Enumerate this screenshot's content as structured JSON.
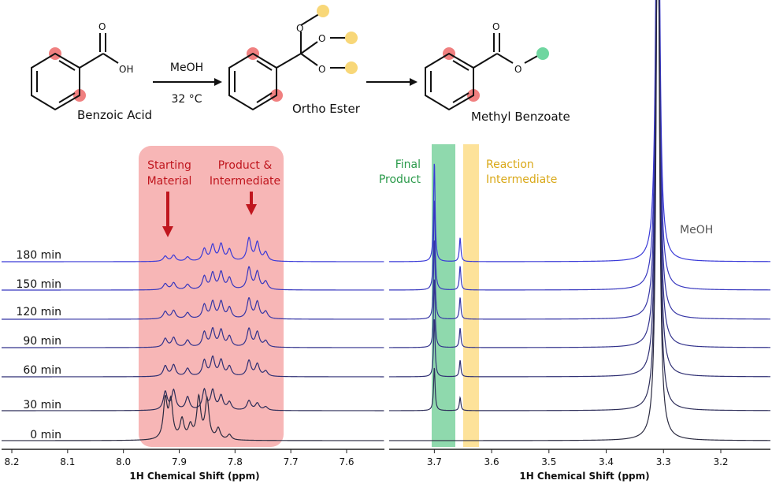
{
  "scheme": {
    "reactant": "Benzoic Acid",
    "intermediate": "Ortho Ester",
    "product": "Methyl Benzoate",
    "reagent": "MeOH",
    "temperature": "32 °C",
    "oh_label": "OH",
    "o_label": "O"
  },
  "colors": {
    "trace_top": "#3a3ad8",
    "trace_bottom": "#2a2a40",
    "red_band": "#f7b6b6",
    "red_text": "#c0161e",
    "green_band": "#8fd9ad",
    "green_text": "#2a9a4a",
    "yellow_band": "#fde29a",
    "yellow_text": "#d9a818",
    "red_dot": "#f08080",
    "yellow_dot": "#f8d778",
    "green_dot": "#6fd6a0"
  },
  "annotations": {
    "starting_material": [
      "Starting",
      "Material"
    ],
    "product_intermediate": [
      "Product &",
      "Intermediate"
    ],
    "final_product": [
      "Final",
      "Product"
    ],
    "reaction_intermediate": [
      "Reaction",
      "Intermediate"
    ],
    "meoh": "MeOH"
  },
  "chart_data": {
    "type": "line",
    "description": "Stacked 1H NMR spectra vs reaction time (split x-axis)",
    "series": [
      {
        "name": "180 min",
        "aromatic_peaks": [
          {
            "ppm": 7.925,
            "h": 0.12
          },
          {
            "ppm": 7.91,
            "h": 0.14
          },
          {
            "ppm": 7.885,
            "h": 0.1
          },
          {
            "ppm": 7.855,
            "h": 0.28
          },
          {
            "ppm": 7.84,
            "h": 0.36
          },
          {
            "ppm": 7.825,
            "h": 0.38
          },
          {
            "ppm": 7.81,
            "h": 0.26
          },
          {
            "ppm": 7.775,
            "h": 0.52
          },
          {
            "ppm": 7.76,
            "h": 0.42
          },
          {
            "ppm": 7.745,
            "h": 0.2
          }
        ],
        "ester_ppm": 3.7,
        "ester_h": 2.3,
        "intermediate_ppm": 3.655,
        "intermediate_h": 0.55
      },
      {
        "name": "150 min",
        "aromatic_peaks": [
          {
            "ppm": 7.925,
            "h": 0.14
          },
          {
            "ppm": 7.91,
            "h": 0.16
          },
          {
            "ppm": 7.885,
            "h": 0.12
          },
          {
            "ppm": 7.855,
            "h": 0.3
          },
          {
            "ppm": 7.84,
            "h": 0.37
          },
          {
            "ppm": 7.825,
            "h": 0.39
          },
          {
            "ppm": 7.81,
            "h": 0.26
          },
          {
            "ppm": 7.775,
            "h": 0.5
          },
          {
            "ppm": 7.76,
            "h": 0.4
          },
          {
            "ppm": 7.745,
            "h": 0.18
          }
        ],
        "ester_ppm": 3.7,
        "ester_h": 2.1,
        "intermediate_ppm": 3.655,
        "intermediate_h": 0.55
      },
      {
        "name": "120 min",
        "aromatic_peaks": [
          {
            "ppm": 7.925,
            "h": 0.17
          },
          {
            "ppm": 7.91,
            "h": 0.19
          },
          {
            "ppm": 7.885,
            "h": 0.14
          },
          {
            "ppm": 7.855,
            "h": 0.32
          },
          {
            "ppm": 7.84,
            "h": 0.38
          },
          {
            "ppm": 7.825,
            "h": 0.38
          },
          {
            "ppm": 7.81,
            "h": 0.25
          },
          {
            "ppm": 7.775,
            "h": 0.46
          },
          {
            "ppm": 7.76,
            "h": 0.38
          },
          {
            "ppm": 7.745,
            "h": 0.16
          }
        ],
        "ester_ppm": 3.7,
        "ester_h": 1.85,
        "intermediate_ppm": 3.655,
        "intermediate_h": 0.5
      },
      {
        "name": "90 min",
        "aromatic_peaks": [
          {
            "ppm": 7.925,
            "h": 0.2
          },
          {
            "ppm": 7.91,
            "h": 0.22
          },
          {
            "ppm": 7.885,
            "h": 0.16
          },
          {
            "ppm": 7.855,
            "h": 0.34
          },
          {
            "ppm": 7.84,
            "h": 0.4
          },
          {
            "ppm": 7.825,
            "h": 0.38
          },
          {
            "ppm": 7.81,
            "h": 0.24
          },
          {
            "ppm": 7.775,
            "h": 0.42
          },
          {
            "ppm": 7.76,
            "h": 0.34
          },
          {
            "ppm": 7.745,
            "h": 0.14
          }
        ],
        "ester_ppm": 3.7,
        "ester_h": 1.6,
        "intermediate_ppm": 3.655,
        "intermediate_h": 0.45
      },
      {
        "name": "60 min",
        "aromatic_peaks": [
          {
            "ppm": 7.925,
            "h": 0.24
          },
          {
            "ppm": 7.91,
            "h": 0.26
          },
          {
            "ppm": 7.885,
            "h": 0.18
          },
          {
            "ppm": 7.855,
            "h": 0.36
          },
          {
            "ppm": 7.84,
            "h": 0.42
          },
          {
            "ppm": 7.825,
            "h": 0.36
          },
          {
            "ppm": 7.81,
            "h": 0.22
          },
          {
            "ppm": 7.775,
            "h": 0.36
          },
          {
            "ppm": 7.76,
            "h": 0.28
          },
          {
            "ppm": 7.745,
            "h": 0.12
          }
        ],
        "ester_ppm": 3.7,
        "ester_h": 1.35,
        "intermediate_ppm": 3.655,
        "intermediate_h": 0.38
      },
      {
        "name": "30 min",
        "aromatic_peaks": [
          {
            "ppm": 7.925,
            "h": 0.42
          },
          {
            "ppm": 7.91,
            "h": 0.45
          },
          {
            "ppm": 7.885,
            "h": 0.3
          },
          {
            "ppm": 7.855,
            "h": 0.46
          },
          {
            "ppm": 7.84,
            "h": 0.44
          },
          {
            "ppm": 7.825,
            "h": 0.32
          },
          {
            "ppm": 7.81,
            "h": 0.18
          },
          {
            "ppm": 7.775,
            "h": 0.22
          },
          {
            "ppm": 7.76,
            "h": 0.16
          },
          {
            "ppm": 7.745,
            "h": 0.08
          }
        ],
        "ester_ppm": 3.7,
        "ester_h": 1.0,
        "intermediate_ppm": 3.655,
        "intermediate_h": 0.3
      },
      {
        "name": "0 min",
        "aromatic_peaks": [
          {
            "ppm": 7.925,
            "h": 0.9
          },
          {
            "ppm": 7.915,
            "h": 0.85
          },
          {
            "ppm": 7.895,
            "h": 0.45
          },
          {
            "ppm": 7.88,
            "h": 0.3
          },
          {
            "ppm": 7.865,
            "h": 0.95
          },
          {
            "ppm": 7.85,
            "h": 0.9
          },
          {
            "ppm": 7.83,
            "h": 0.25
          },
          {
            "ppm": 7.81,
            "h": 0.12
          }
        ],
        "ester_ppm": 3.7,
        "ester_h": 0.0,
        "intermediate_ppm": 3.655,
        "intermediate_h": 0.0
      }
    ],
    "meoh_ppm": 3.31,
    "axis_left": {
      "xlim": [
        8.22,
        7.52
      ],
      "ticks": [
        "8.2",
        "8.1",
        "8.0",
        "7.9",
        "7.8",
        "7.7",
        "7.6"
      ],
      "xlabel": "1H Chemical Shift (ppm)"
    },
    "axis_right": {
      "xlim": [
        3.8,
        3.13
      ],
      "ticks": [
        "3.7",
        "3.6",
        "3.5",
        "3.4",
        "3.3",
        "3.2"
      ],
      "xlabel": "1H Chemical Shift (ppm)"
    },
    "highlight_ranges": {
      "starting_material_and_product": [
        7.97,
        7.71
      ],
      "final_product": [
        3.718,
        3.683
      ],
      "reaction_intermediate": [
        3.671,
        3.643
      ]
    }
  }
}
